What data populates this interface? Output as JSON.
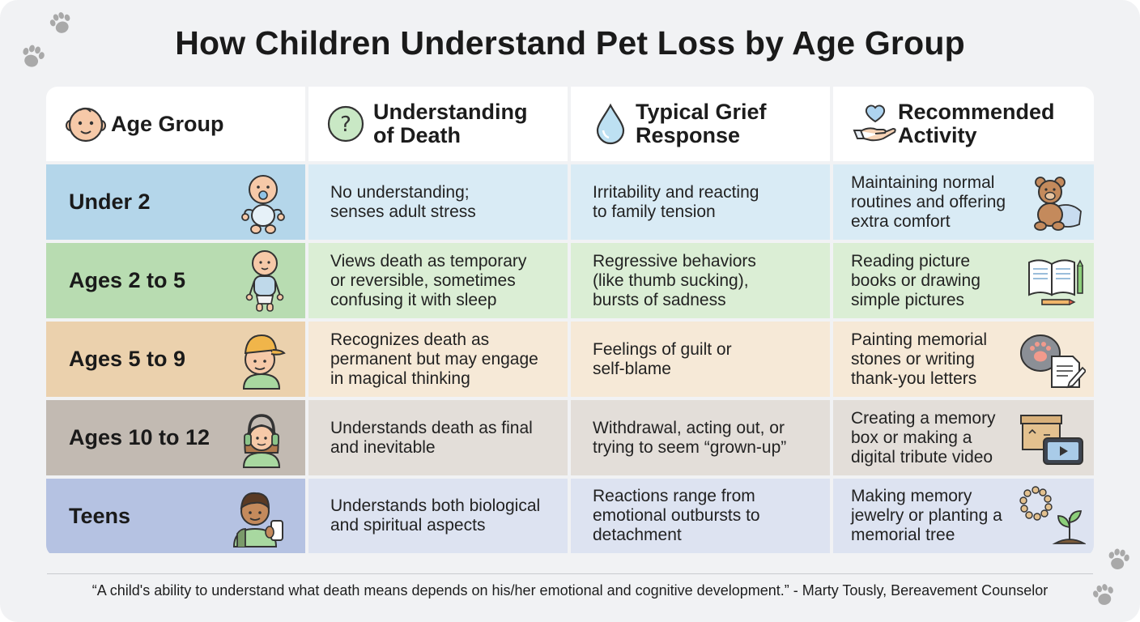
{
  "title": "How Children Understand Pet Loss by Age Group",
  "headers": [
    {
      "label": "Age Group",
      "icon": "baby-face-icon"
    },
    {
      "label": "Understanding\nof Death",
      "icon": "question-circle-icon"
    },
    {
      "label": "Typical Grief\nResponse",
      "icon": "teardrop-icon"
    },
    {
      "label": "Recommended\nActivity",
      "icon": "heart-in-hand-icon"
    }
  ],
  "rows": [
    {
      "age": "Under 2",
      "understanding": "No understanding;\nsenses adult stress",
      "grief": "Irritability and reacting\nto family tension",
      "activity": "Maintaining normal\nroutines and offering\nextra comfort",
      "age_icon": "baby-with-pacifier-icon",
      "activity_icon": "teddy-bear-blanket-icon"
    },
    {
      "age": "Ages 2 to 5",
      "understanding": "Views death as temporary\nor reversible, sometimes\nconfusing it with sleep",
      "grief": "Regressive behaviors\n(like thumb sucking),\nbursts of sadness",
      "activity": "Reading picture\nbooks or drawing\nsimple pictures",
      "age_icon": "toddler-icon",
      "activity_icon": "book-and-crayons-icon"
    },
    {
      "age": "Ages 5 to 9",
      "understanding": "Recognizes death as\npermanent but may engage\nin magical thinking",
      "grief": "Feelings of guilt or\nself-blame",
      "activity": "Painting memorial\nstones or writing\nthank-you letters",
      "age_icon": "child-with-cap-icon",
      "activity_icon": "painted-stone-letter-icon"
    },
    {
      "age": "Ages 10 to 12",
      "understanding": "Understands death as final\nand inevitable",
      "grief": "Withdrawal, acting out, or\ntrying to seem “grown-up”",
      "activity": "Creating a memory\nbox or making a\ndigital tribute video",
      "age_icon": "preteen-with-headphones-icon",
      "activity_icon": "memory-box-video-icon"
    },
    {
      "age": "Teens",
      "understanding": "Understands both biological\nand spiritual aspects",
      "grief": "Reactions range from\nemotional outbursts to\ndetachment",
      "activity": "Making memory\njewelry or planting a\nmemorial tree",
      "age_icon": "teen-with-phone-icon",
      "activity_icon": "bracelet-and-sapling-icon"
    }
  ],
  "quote": "“A child's ability to understand what death means depends on his/her emotional and cognitive development.” - Marty Tously, Bereavement Counselor",
  "colors": {
    "background": "#f1f2f4",
    "row_under2": "#b4d6ea",
    "row_2to5": "#b8dcb1",
    "row_5to9": "#ebd1ad",
    "row_10to12": "#c2bab2",
    "row_teens": "#b5c2e2"
  }
}
